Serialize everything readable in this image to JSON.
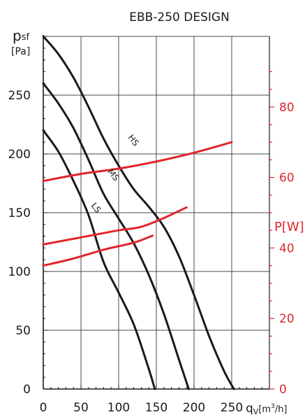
{
  "chart_data": {
    "type": "line",
    "title": "EBB-250 DESIGN",
    "x_axis": {
      "label_main": "q",
      "label_sub": "V",
      "label_unit_pre": "[m",
      "label_unit_sup": "3",
      "label_unit_post": "/h]",
      "range": [
        0,
        300
      ],
      "ticks": [
        0,
        50,
        100,
        150,
        200,
        250
      ]
    },
    "y_axis_left": {
      "label_main": "p",
      "label_sub": "sf",
      "label_unit": "[Pa]",
      "range": [
        0,
        300
      ],
      "ticks": [
        0,
        50,
        100,
        150,
        200,
        250
      ]
    },
    "y_axis_right": {
      "label": "P[W]",
      "range": [
        0,
        100
      ],
      "ticks": [
        0,
        20,
        40,
        60,
        80
      ],
      "color": "#e1262b"
    },
    "grid": true,
    "pressure_series": [
      {
        "name": "HS",
        "color": "#1a1a1a",
        "points": [
          [
            0,
            300
          ],
          [
            20,
            285
          ],
          [
            40,
            265
          ],
          [
            60,
            240
          ],
          [
            80,
            213
          ],
          [
            100,
            190
          ],
          [
            120,
            170
          ],
          [
            140,
            155
          ],
          [
            160,
            138
          ],
          [
            180,
            113
          ],
          [
            200,
            80
          ],
          [
            220,
            45
          ],
          [
            240,
            15
          ],
          [
            253,
            0
          ]
        ]
      },
      {
        "name": "MS",
        "color": "#1a1a1a",
        "points": [
          [
            0,
            260
          ],
          [
            20,
            243
          ],
          [
            40,
            222
          ],
          [
            60,
            195
          ],
          [
            80,
            166
          ],
          [
            100,
            145
          ],
          [
            120,
            124
          ],
          [
            140,
            97
          ],
          [
            160,
            64
          ],
          [
            180,
            25
          ],
          [
            193,
            0
          ]
        ]
      },
      {
        "name": "LS",
        "color": "#1a1a1a",
        "points": [
          [
            0,
            220
          ],
          [
            20,
            202
          ],
          [
            40,
            177
          ],
          [
            60,
            148
          ],
          [
            80,
            108
          ],
          [
            100,
            82
          ],
          [
            120,
            55
          ],
          [
            140,
            17
          ],
          [
            148,
            0
          ]
        ]
      }
    ],
    "power_series": [
      {
        "name": "HS",
        "color": "#e1262b",
        "points": [
          [
            0,
            59
          ],
          [
            50,
            61
          ],
          [
            100,
            62.5
          ],
          [
            150,
            64.5
          ],
          [
            200,
            67
          ],
          [
            250,
            70
          ]
        ]
      },
      {
        "name": "MS",
        "color": "#e1262b",
        "points": [
          [
            0,
            41
          ],
          [
            50,
            43
          ],
          [
            100,
            45
          ],
          [
            130,
            46
          ],
          [
            160,
            48.5
          ],
          [
            190,
            51.5
          ]
        ]
      },
      {
        "name": "LS",
        "color": "#e1262b",
        "points": [
          [
            0,
            35
          ],
          [
            40,
            37
          ],
          [
            80,
            39.5
          ],
          [
            120,
            41.5
          ],
          [
            145,
            43.5
          ]
        ]
      }
    ],
    "curve_labels": [
      {
        "text": "HS",
        "x": 112,
        "y": 214
      },
      {
        "text": "MS",
        "x": 85,
        "y": 185
      },
      {
        "text": "LS",
        "x": 63,
        "y": 156
      }
    ]
  }
}
